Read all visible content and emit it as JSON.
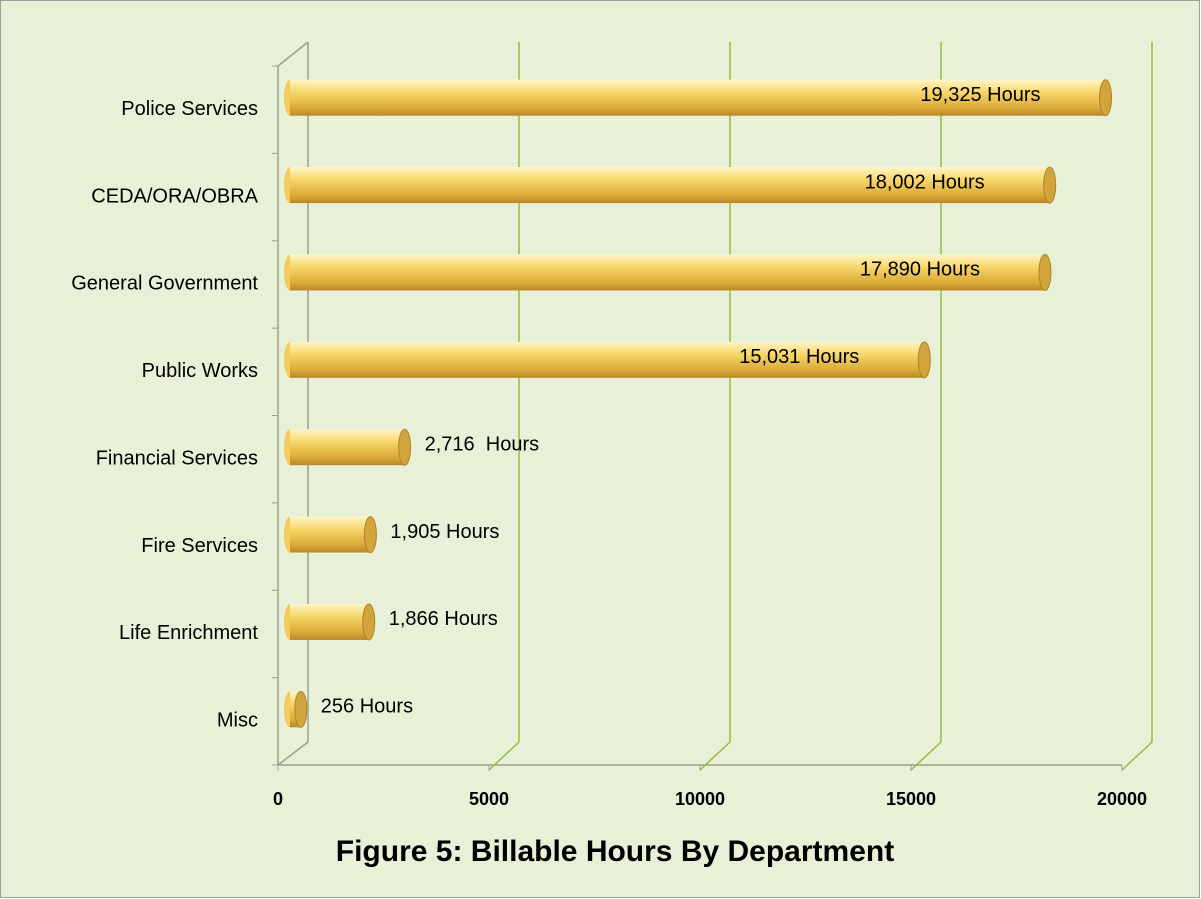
{
  "chart_data": {
    "type": "bar",
    "orientation": "horizontal",
    "title": "Figure 5: Billable Hours By Department",
    "categories": [
      "Police Services",
      "CEDA/ORA/OBRA",
      "General Government",
      "Public Works",
      "Financial Services",
      "Fire Services",
      "Life Enrichment",
      "Misc"
    ],
    "values": [
      19325,
      18002,
      17890,
      15031,
      2716,
      1905,
      1866,
      256
    ],
    "value_labels": [
      "19,325 Hours",
      "18,002 Hours",
      "17,890 Hours",
      "15,031 Hours",
      "2,716  Hours",
      "1,905 Hours",
      "1,866 Hours",
      "256 Hours"
    ],
    "color": "#f2cc5c",
    "xlim": [
      0,
      20000
    ],
    "xticks": [
      0,
      5000,
      10000,
      15000,
      20000
    ],
    "grid": true
  }
}
